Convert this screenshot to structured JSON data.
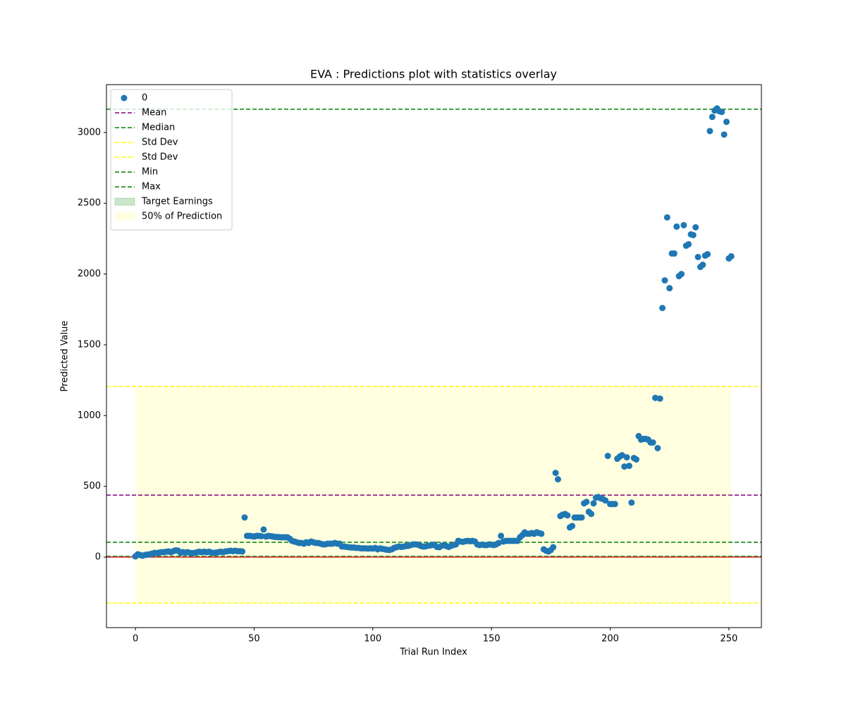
{
  "chart_data": {
    "type": "scatter",
    "title": "EVA : Predictions plot with statistics overlay",
    "xlabel": "Trial Run Index",
    "ylabel": "Predicted Value",
    "x": [
      0,
      1,
      2,
      3,
      4,
      5,
      6,
      7,
      8,
      9,
      10,
      11,
      12,
      13,
      14,
      15,
      16,
      17,
      18,
      19,
      20,
      21,
      22,
      23,
      24,
      25,
      26,
      27,
      28,
      29,
      30,
      31,
      32,
      33,
      34,
      35,
      36,
      37,
      38,
      39,
      40,
      41,
      42,
      43,
      44,
      45,
      46,
      47,
      48,
      49,
      50,
      51,
      52,
      53,
      54,
      55,
      56,
      57,
      58,
      59,
      60,
      61,
      62,
      63,
      64,
      65,
      66,
      67,
      68,
      69,
      70,
      71,
      72,
      73,
      74,
      75,
      76,
      77,
      78,
      79,
      80,
      81,
      82,
      83,
      84,
      85,
      86,
      87,
      88,
      89,
      90,
      91,
      92,
      93,
      94,
      95,
      96,
      97,
      98,
      99,
      100,
      101,
      102,
      103,
      104,
      105,
      106,
      107,
      108,
      109,
      110,
      111,
      112,
      113,
      114,
      115,
      116,
      117,
      118,
      119,
      120,
      121,
      122,
      123,
      124,
      125,
      126,
      127,
      128,
      129,
      130,
      131,
      132,
      133,
      134,
      135,
      136,
      137,
      138,
      139,
      140,
      141,
      142,
      143,
      144,
      145,
      146,
      147,
      148,
      149,
      150,
      151,
      152,
      153,
      154,
      155,
      156,
      157,
      158,
      159,
      160,
      161,
      162,
      163,
      164,
      165,
      166,
      167,
      168,
      169,
      170,
      171,
      172,
      173,
      174,
      175,
      176,
      177,
      178,
      179,
      180,
      181,
      182,
      183,
      184,
      185,
      186,
      187,
      188,
      189,
      190,
      191,
      192,
      193,
      194,
      195,
      196,
      197,
      198,
      199,
      200,
      201,
      202,
      203,
      204,
      205,
      206,
      207,
      208,
      209,
      210,
      211,
      212,
      213,
      214,
      215,
      216,
      217,
      218,
      219,
      220,
      221,
      222,
      223,
      224,
      225,
      226,
      227,
      228,
      229,
      230,
      231,
      232,
      233,
      234,
      235,
      236,
      237,
      238,
      239,
      240,
      241,
      242,
      243,
      244,
      245,
      246,
      247,
      248,
      249,
      250,
      251
    ],
    "series": [
      {
        "name": "0",
        "color": "#1f77b4",
        "values": [
          5,
          20,
          15,
          10,
          15,
          18,
          20,
          25,
          30,
          28,
          32,
          35,
          35,
          38,
          40,
          35,
          42,
          48,
          45,
          30,
          35,
          32,
          35,
          30,
          28,
          30,
          35,
          38,
          35,
          38,
          35,
          38,
          32,
          30,
          32,
          35,
          38,
          35,
          40,
          42,
          45,
          42,
          45,
          42,
          42,
          40,
          280,
          150,
          150,
          148,
          145,
          150,
          150,
          148,
          195,
          145,
          150,
          148,
          145,
          142,
          142,
          140,
          140,
          140,
          140,
          130,
          115,
          110,
          105,
          100,
          100,
          95,
          105,
          100,
          110,
          105,
          100,
          100,
          95,
          90,
          90,
          95,
          95,
          95,
          100,
          95,
          95,
          75,
          75,
          72,
          70,
          68,
          68,
          65,
          65,
          62,
          62,
          62,
          60,
          62,
          60,
          65,
          55,
          62,
          58,
          55,
          52,
          50,
          55,
          65,
          70,
          75,
          72,
          75,
          78,
          80,
          85,
          90,
          90,
          88,
          80,
          75,
          75,
          80,
          82,
          85,
          88,
          72,
          70,
          80,
          85,
          78,
          72,
          80,
          85,
          90,
          115,
          110,
          108,
          112,
          115,
          112,
          115,
          110,
          90,
          85,
          88,
          85,
          85,
          90,
          88,
          85,
          90,
          100,
          150,
          110,
          115,
          115,
          115,
          115,
          115,
          115,
          140,
          155,
          175,
          165,
          165,
          170,
          165,
          175,
          170,
          165,
          55,
          45,
          40,
          50,
          70,
          595,
          550,
          290,
          300,
          305,
          295,
          210,
          220,
          280,
          280,
          280,
          280,
          380,
          390,
          320,
          305,
          380,
          420,
          425,
          415,
          410,
          400,
          715,
          375,
          375,
          375,
          695,
          710,
          720,
          640,
          705,
          645,
          385,
          700,
          690,
          855,
          830,
          835,
          835,
          830,
          810,
          810,
          1125,
          770,
          1120,
          1760,
          1955,
          2400,
          1900,
          2145,
          2145,
          2335,
          1985,
          2000,
          2345,
          2200,
          2210,
          2280,
          2275,
          2330,
          2120,
          2050,
          2065,
          2130,
          2140,
          3010,
          3110,
          3155,
          3170,
          3150,
          3145,
          2985,
          3075,
          2110,
          2125
        ]
      }
    ],
    "hlines": [
      {
        "name": "Mean",
        "value": 438,
        "color": "purple",
        "style": "dashed"
      },
      {
        "name": "Median",
        "value": 105,
        "color": "green",
        "style": "dashed"
      },
      {
        "name": "Std Dev",
        "value": 1206,
        "color": "yellow",
        "style": "dashed"
      },
      {
        "name": "Std Dev",
        "value": -324,
        "color": "yellow",
        "style": "dashed"
      },
      {
        "name": "Min",
        "value": 5,
        "color": "green",
        "style": "dashed"
      },
      {
        "name": "Max",
        "value": 3164,
        "color": "green",
        "style": "dashed"
      },
      {
        "value": 0,
        "color": "#d62728",
        "style": "solid"
      }
    ],
    "spans": [
      {
        "name": "Target Earnings",
        "range": [
          0,
          10
        ],
        "color": "rgba(0,128,0,0.2)"
      },
      {
        "name": "50% of Prediction",
        "range": [
          -324,
          1206
        ],
        "x": [
          0,
          251
        ],
        "color": "rgba(255,255,204,0.6)"
      }
    ],
    "xlim": [
      -12.2,
      263.7
    ],
    "ylim": [
      -498,
      3338
    ],
    "xticks": [
      0,
      50,
      100,
      150,
      200,
      250
    ],
    "yticks": [
      0,
      500,
      1000,
      1500,
      2000,
      2500,
      3000
    ],
    "legend": "upper left"
  }
}
